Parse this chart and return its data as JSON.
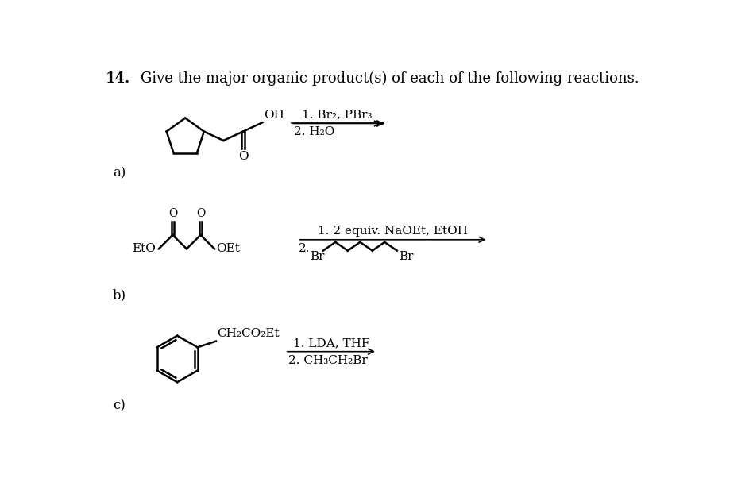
{
  "title_number": "14.",
  "title_text": "Give the major organic product(s) of each of the following reactions.",
  "bg_color": "#ffffff",
  "label_a": "a)",
  "label_b": "b)",
  "label_c": "c)",
  "reaction_a_line1": "1. Br₂, PBr₃",
  "reaction_a_line2": "2. H₂O",
  "reaction_b_line1": "1. 2 equiv. NaOEt, EtOH",
  "reaction_c_line1": "1. LDA, THF",
  "reaction_c_line2": "2. CH₃CH₂Br",
  "font_size_title": 13,
  "font_size_labels": 12,
  "font_size_chem": 11,
  "lw": 1.8
}
